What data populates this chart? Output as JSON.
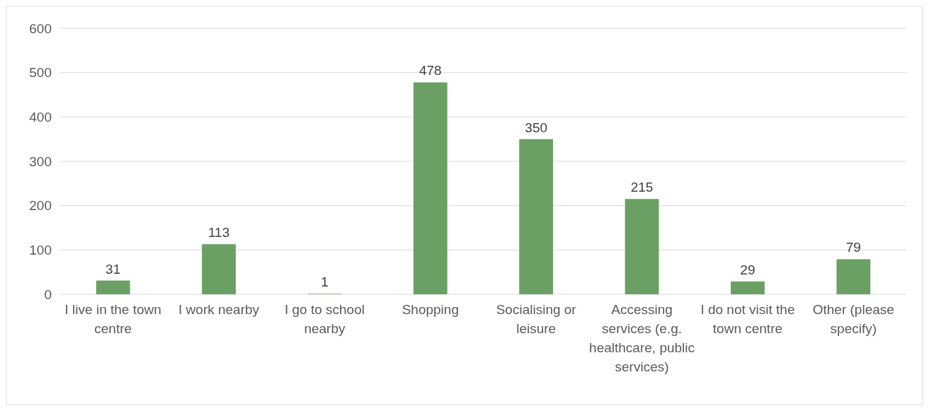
{
  "chart_data": {
    "type": "bar",
    "categories": [
      "I live in the town centre",
      "I work nearby",
      "I go to school nearby",
      "Shopping",
      "Socialising or leisure",
      "Accessing services (e.g. healthcare, public services)",
      "I do not visit the town centre",
      "Other (please specify)"
    ],
    "values": [
      31,
      113,
      1,
      478,
      350,
      215,
      29,
      79
    ],
    "color": "#6aa063",
    "ylim": [
      0,
      600
    ],
    "yticks": [
      0,
      100,
      200,
      300,
      400,
      500,
      600
    ],
    "grid": "y",
    "data_labels": true
  }
}
